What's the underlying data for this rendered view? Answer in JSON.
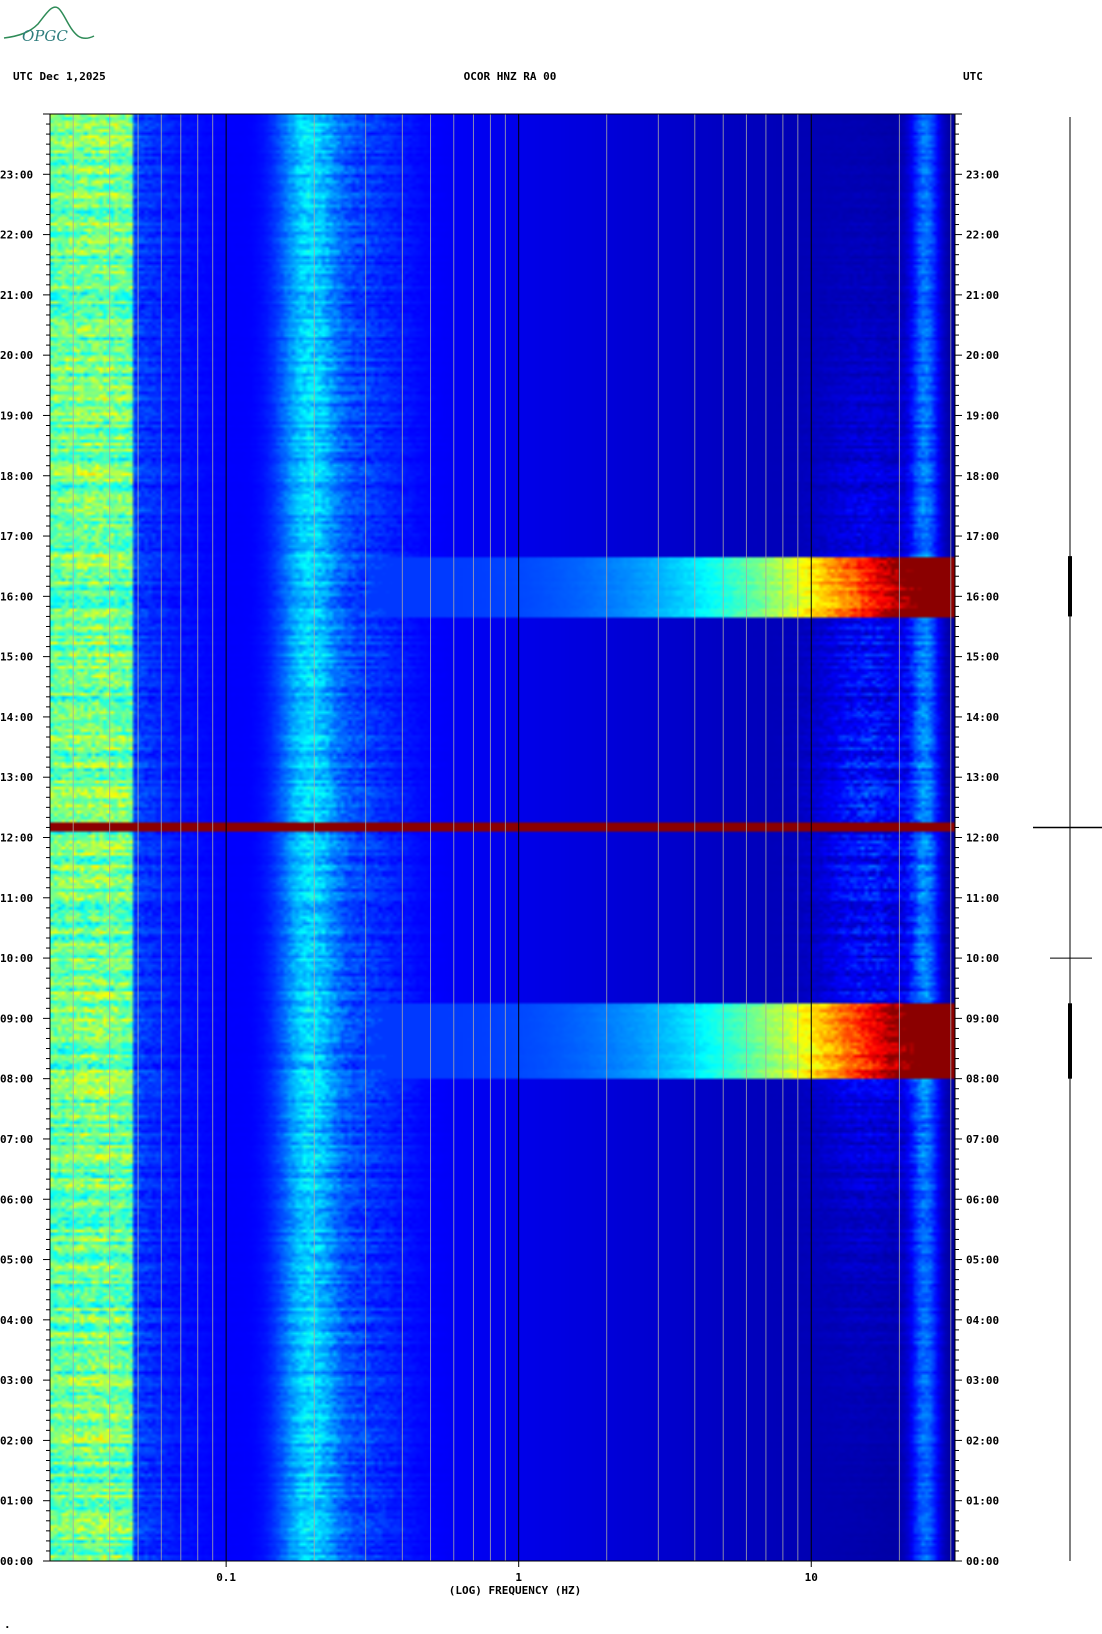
{
  "header": {
    "logo_text": "OPGC",
    "left_label": "UTC  Dec 1,2025",
    "center_label": "OCOR HNZ RA 00",
    "right_label": "UTC"
  },
  "footer_mark": ".",
  "chart_data": {
    "type": "heatmap",
    "title": "OCOR HNZ RA 00",
    "date": "Dec 1,2025",
    "timezone": "UTC",
    "xlabel": "(LOG) FREQUENCY (HZ)",
    "x_scale": "log",
    "xlim": [
      0.025,
      31
    ],
    "x_ticks": [
      {
        "value": 0.1,
        "label": "0.1"
      },
      {
        "value": 1,
        "label": "1"
      },
      {
        "value": 10,
        "label": "10"
      }
    ],
    "ylim_hours": [
      0,
      24
    ],
    "y_ticks": [
      "00:00",
      "01:00",
      "02:00",
      "03:00",
      "04:00",
      "05:00",
      "06:00",
      "07:00",
      "08:00",
      "09:00",
      "10:00",
      "11:00",
      "12:00",
      "13:00",
      "14:00",
      "15:00",
      "16:00",
      "17:00",
      "18:00",
      "19:00",
      "20:00",
      "21:00",
      "22:00",
      "23:00"
    ],
    "colormap": [
      "#00008b",
      "#0000ff",
      "#0080ff",
      "#00ffff",
      "#80ff80",
      "#ffff00",
      "#ff8000",
      "#ff0000",
      "#8b0000"
    ],
    "events": [
      {
        "name": "broadband burst",
        "start": "08:00",
        "end": "09:15",
        "f_min_hz": 0.3,
        "peak_hz": 20
      },
      {
        "name": "broadband burst",
        "start": "15:40",
        "end": "16:40",
        "f_min_hz": 0.3,
        "peak_hz": 20
      },
      {
        "name": "full-band line",
        "time": "12:10",
        "f_min_hz": 0.025,
        "f_max_hz": 31
      }
    ]
  }
}
